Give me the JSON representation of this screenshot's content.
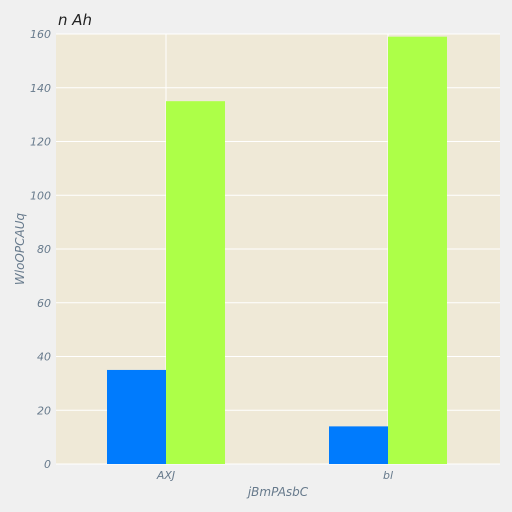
{
  "chart_data": {
    "type": "bar",
    "title": "n  Ah",
    "xlabel": "jBmPAsbC",
    "ylabel": "WloOPCAUq",
    "categories": [
      "AXJ",
      "bl"
    ],
    "series": [
      {
        "values": [
          35,
          14
        ]
      },
      {
        "values": [
          135,
          159
        ]
      }
    ],
    "ylim": [
      0,
      160
    ],
    "yticks": [
      0,
      20,
      40,
      60,
      80,
      100,
      120,
      140,
      160
    ],
    "grid": true,
    "legend": "none",
    "colors": {
      "plot_background": "#efe9d7",
      "page_background": "#f0f0f0",
      "grid": "#ffffff",
      "series": [
        "#007bfd",
        "#adff48"
      ],
      "text": "#677a8c"
    }
  }
}
